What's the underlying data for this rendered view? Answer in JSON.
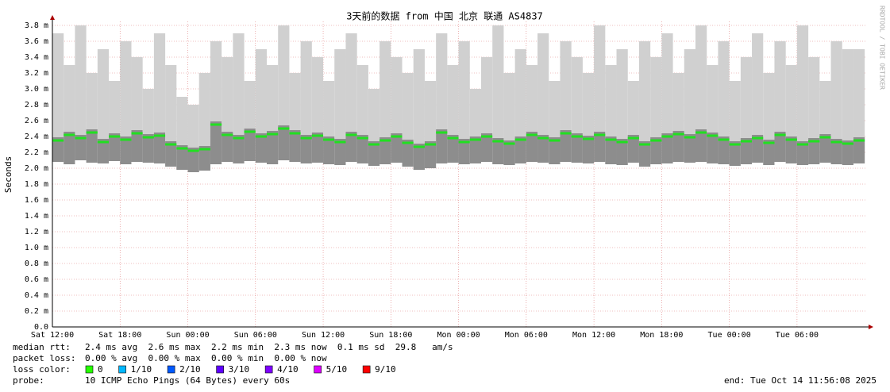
{
  "chart_data": {
    "type": "smokeping",
    "title": "3天前的数据 from 中国 北京 联通 AS4837",
    "y_label": "Seconds",
    "side_note": "RRDTOOL / TOBI OETIKER",
    "ylim": [
      0,
      3.85
    ],
    "yticks": [
      {
        "value": 0,
        "label": "0.0"
      },
      {
        "value": 0.2,
        "label": "0.2 m"
      },
      {
        "value": 0.4,
        "label": "0.4 m"
      },
      {
        "value": 0.6,
        "label": "0.6 m"
      },
      {
        "value": 0.8,
        "label": "0.8 m"
      },
      {
        "value": 1.0,
        "label": "1.0 m"
      },
      {
        "value": 1.2,
        "label": "1.2 m"
      },
      {
        "value": 1.4,
        "label": "1.4 m"
      },
      {
        "value": 1.6,
        "label": "1.6 m"
      },
      {
        "value": 1.8,
        "label": "1.8 m"
      },
      {
        "value": 2.0,
        "label": "2.0 m"
      },
      {
        "value": 2.2,
        "label": "2.2 m"
      },
      {
        "value": 2.4,
        "label": "2.4 m"
      },
      {
        "value": 2.6,
        "label": "2.6 m"
      },
      {
        "value": 2.8,
        "label": "2.8 m"
      },
      {
        "value": 3.0,
        "label": "3.0 m"
      },
      {
        "value": 3.2,
        "label": "3.2 m"
      },
      {
        "value": 3.4,
        "label": "3.4 m"
      },
      {
        "value": 3.6,
        "label": "3.6 m"
      },
      {
        "value": 3.8,
        "label": "3.8 m"
      }
    ],
    "xlim": [
      0,
      72.2
    ],
    "xticks": [
      {
        "value": 0,
        "label": "Sat 12:00"
      },
      {
        "value": 6,
        "label": "Sat 18:00"
      },
      {
        "value": 12,
        "label": "Sun 00:00"
      },
      {
        "value": 18,
        "label": "Sun 06:00"
      },
      {
        "value": 24,
        "label": "Sun 12:00"
      },
      {
        "value": 30,
        "label": "Sun 18:00"
      },
      {
        "value": 36,
        "label": "Mon 00:00"
      },
      {
        "value": 42,
        "label": "Mon 06:00"
      },
      {
        "value": 48,
        "label": "Mon 12:00"
      },
      {
        "value": 54,
        "label": "Mon 18:00"
      },
      {
        "value": 60,
        "label": "Tue 00:00"
      },
      {
        "value": 66,
        "label": "Tue 06:00"
      }
    ],
    "grid": true,
    "x": [
      0,
      1,
      2,
      3,
      4,
      5,
      6,
      7,
      8,
      9,
      10,
      11,
      12,
      13,
      14,
      15,
      16,
      17,
      18,
      19,
      20,
      21,
      22,
      23,
      24,
      25,
      26,
      27,
      28,
      29,
      30,
      31,
      32,
      33,
      34,
      35,
      36,
      37,
      38,
      39,
      40,
      41,
      42,
      43,
      44,
      45,
      46,
      47,
      48,
      49,
      50,
      51,
      52,
      53,
      54,
      55,
      56,
      57,
      58,
      59,
      60,
      61,
      62,
      63,
      64,
      65,
      66,
      67,
      68,
      69,
      70,
      71
    ],
    "series": [
      {
        "name": "median rtt",
        "color": "#20e020",
        "values": [
          2.35,
          2.42,
          2.38,
          2.45,
          2.33,
          2.4,
          2.36,
          2.44,
          2.39,
          2.41,
          2.3,
          2.25,
          2.22,
          2.24,
          2.55,
          2.42,
          2.38,
          2.46,
          2.4,
          2.43,
          2.5,
          2.44,
          2.38,
          2.41,
          2.36,
          2.33,
          2.42,
          2.38,
          2.3,
          2.35,
          2.4,
          2.32,
          2.27,
          2.3,
          2.45,
          2.38,
          2.33,
          2.36,
          2.4,
          2.34,
          2.31,
          2.36,
          2.42,
          2.38,
          2.35,
          2.44,
          2.4,
          2.37,
          2.42,
          2.36,
          2.33,
          2.38,
          2.3,
          2.35,
          2.4,
          2.43,
          2.39,
          2.45,
          2.41,
          2.36,
          2.3,
          2.34,
          2.38,
          2.32,
          2.42,
          2.36,
          2.3,
          2.34,
          2.39,
          2.33,
          2.31,
          2.35
        ]
      },
      {
        "name": "min",
        "color": "#d0d0d0",
        "values": [
          2.08,
          2.05,
          2.1,
          2.07,
          2.06,
          2.09,
          2.05,
          2.08,
          2.07,
          2.06,
          2.02,
          1.98,
          1.95,
          1.97,
          2.05,
          2.08,
          2.06,
          2.09,
          2.07,
          2.05,
          2.1,
          2.08,
          2.06,
          2.07,
          2.05,
          2.04,
          2.08,
          2.06,
          2.03,
          2.05,
          2.07,
          2.02,
          1.98,
          2.0,
          2.06,
          2.07,
          2.05,
          2.06,
          2.08,
          2.05,
          2.04,
          2.06,
          2.08,
          2.07,
          2.05,
          2.08,
          2.07,
          2.06,
          2.08,
          2.05,
          2.04,
          2.07,
          2.02,
          2.05,
          2.06,
          2.08,
          2.07,
          2.08,
          2.06,
          2.05,
          2.03,
          2.05,
          2.07,
          2.04,
          2.08,
          2.06,
          2.04,
          2.05,
          2.07,
          2.05,
          2.04,
          2.06
        ]
      },
      {
        "name": "max",
        "color": "#d0d0d0",
        "values": [
          3.7,
          3.3,
          3.8,
          3.2,
          3.5,
          3.1,
          3.6,
          3.4,
          3.0,
          3.7,
          3.3,
          2.9,
          2.8,
          3.2,
          3.6,
          3.4,
          3.7,
          3.1,
          3.5,
          3.3,
          3.8,
          3.2,
          3.6,
          3.4,
          3.1,
          3.5,
          3.7,
          3.3,
          3.0,
          3.6,
          3.4,
          3.2,
          3.5,
          3.1,
          3.7,
          3.3,
          3.6,
          3.0,
          3.4,
          3.8,
          3.2,
          3.5,
          3.3,
          3.7,
          3.1,
          3.6,
          3.4,
          3.2,
          3.8,
          3.3,
          3.5,
          3.1,
          3.6,
          3.4,
          3.7,
          3.2,
          3.5,
          3.8,
          3.3,
          3.6,
          3.1,
          3.4,
          3.7,
          3.2,
          3.6,
          3.3,
          3.8,
          3.4,
          3.1,
          3.6,
          3.5,
          3.5
        ]
      }
    ],
    "stats": [
      {
        "label": "median rtt:",
        "text": "2.4 ms avg  2.6 ms max  2.2 ms min  2.3 ms now  0.1 ms sd  29.8   am/s"
      },
      {
        "label": "packet loss:",
        "text": "0.00 % avg  0.00 % max  0.00 % min  0.00 % now"
      }
    ],
    "loss_legend_label": "loss color:",
    "loss_colors": [
      {
        "label": "0",
        "color": "#26ff00"
      },
      {
        "label": "1/10",
        "color": "#00b8ff"
      },
      {
        "label": "2/10",
        "color": "#0059ff"
      },
      {
        "label": "3/10",
        "color": "#5e00ff"
      },
      {
        "label": "4/10",
        "color": "#7e00ff"
      },
      {
        "label": "5/10",
        "color": "#dd00ff"
      },
      {
        "label": "9/10",
        "color": "#ff0000"
      }
    ],
    "probe_label": "probe:",
    "probe": "10 ICMP Echo Pings (64 Bytes) every 60s",
    "end": "end: Tue Oct 14 11:56:08 2025"
  }
}
